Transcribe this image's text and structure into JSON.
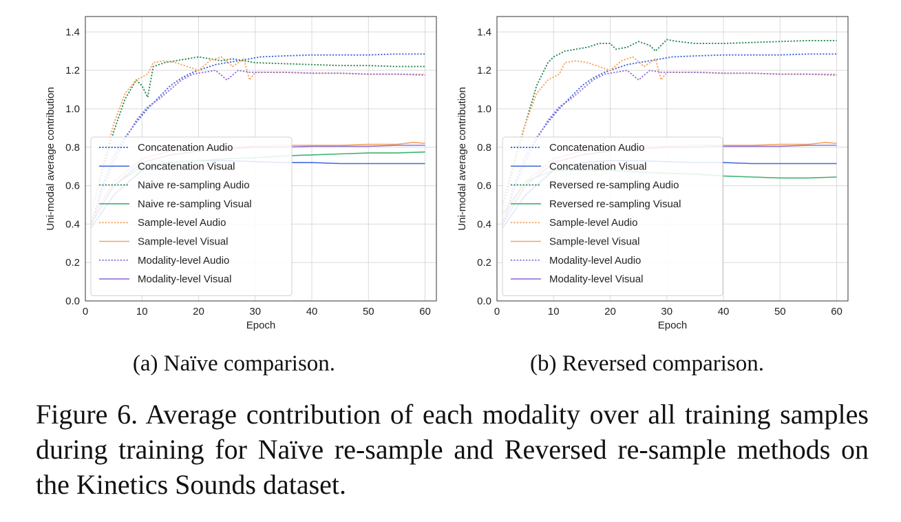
{
  "chart_data": [
    {
      "type": "line",
      "panel_id": "a",
      "xlabel": "Epoch",
      "ylabel": "Uni-modal average contribution",
      "xlim": [
        0,
        62
      ],
      "ylim": [
        0,
        1.48
      ],
      "xticks": [
        0,
        10,
        20,
        30,
        40,
        50,
        60
      ],
      "yticks": [
        0.0,
        0.2,
        0.4,
        0.6,
        0.8,
        1.0,
        1.2,
        1.4
      ],
      "ytick_labels": [
        "0.0",
        "0.2",
        "0.4",
        "0.6",
        "0.8",
        "1.0",
        "1.2",
        "1.4"
      ],
      "grid": true,
      "legend_position": "lower-left",
      "series": [
        {
          "name": "Concatenation Audio",
          "color": "#4169e1",
          "style": "dotted",
          "x": [
            1,
            3,
            5,
            7,
            9,
            11,
            13,
            15,
            17,
            19,
            21,
            23,
            25,
            27,
            29,
            31,
            35,
            40,
            45,
            50,
            55,
            60
          ],
          "y": [
            0.4,
            0.6,
            0.75,
            0.85,
            0.93,
            1.0,
            1.06,
            1.12,
            1.16,
            1.19,
            1.21,
            1.23,
            1.24,
            1.25,
            1.26,
            1.27,
            1.275,
            1.28,
            1.28,
            1.28,
            1.285,
            1.285
          ]
        },
        {
          "name": "Concatenation Visual",
          "color": "#4169e1",
          "style": "solid",
          "x": [
            1,
            5,
            10,
            15,
            20,
            25,
            30,
            35,
            40,
            45,
            50,
            55,
            60
          ],
          "y": [
            0.38,
            0.55,
            0.68,
            0.72,
            0.73,
            0.73,
            0.725,
            0.72,
            0.72,
            0.715,
            0.715,
            0.715,
            0.715
          ]
        },
        {
          "name": "Naive re-sampling Audio",
          "color": "#2e8b57",
          "style": "dotted",
          "x": [
            1,
            3,
            5,
            7,
            9,
            10,
            11,
            12,
            14,
            16,
            18,
            20,
            22,
            24,
            26,
            28,
            30,
            35,
            40,
            45,
            50,
            55,
            60
          ],
          "y": [
            0.45,
            0.68,
            0.88,
            1.05,
            1.15,
            1.12,
            1.06,
            1.22,
            1.24,
            1.25,
            1.26,
            1.27,
            1.26,
            1.25,
            1.26,
            1.25,
            1.24,
            1.235,
            1.23,
            1.225,
            1.225,
            1.22,
            1.22
          ]
        },
        {
          "name": "Naive re-sampling Visual",
          "color": "#3cb371",
          "style": "solid",
          "x": [
            1,
            5,
            10,
            15,
            20,
            25,
            30,
            35,
            40,
            45,
            50,
            55,
            60
          ],
          "y": [
            0.4,
            0.6,
            0.7,
            0.72,
            0.73,
            0.74,
            0.745,
            0.755,
            0.76,
            0.765,
            0.77,
            0.77,
            0.775
          ]
        },
        {
          "name": "Sample-level Audio",
          "color": "#f4a460",
          "style": "dotted",
          "x": [
            1,
            3,
            5,
            7,
            9,
            11,
            12,
            14,
            16,
            18,
            20,
            22,
            24,
            26,
            28,
            29,
            30,
            32,
            35,
            40,
            45,
            50,
            55,
            60
          ],
          "y": [
            0.45,
            0.7,
            0.92,
            1.08,
            1.15,
            1.18,
            1.24,
            1.25,
            1.24,
            1.22,
            1.2,
            1.25,
            1.27,
            1.22,
            1.26,
            1.15,
            1.19,
            1.19,
            1.19,
            1.185,
            1.185,
            1.18,
            1.18,
            1.18
          ]
        },
        {
          "name": "Sample-level Visual",
          "color": "#f4a460",
          "style": "solid",
          "x": [
            1,
            5,
            10,
            15,
            20,
            25,
            30,
            35,
            40,
            45,
            50,
            55,
            58,
            60
          ],
          "y": [
            0.42,
            0.62,
            0.74,
            0.78,
            0.79,
            0.8,
            0.805,
            0.81,
            0.81,
            0.81,
            0.815,
            0.815,
            0.825,
            0.82
          ]
        },
        {
          "name": "Modality-level Audio",
          "color": "#9370db",
          "style": "dotted",
          "x": [
            1,
            3,
            5,
            7,
            9,
            11,
            13,
            15,
            17,
            19,
            21,
            23,
            25,
            27,
            29,
            31,
            35,
            40,
            45,
            50,
            55,
            60
          ],
          "y": [
            0.38,
            0.58,
            0.72,
            0.84,
            0.94,
            1.01,
            1.05,
            1.1,
            1.15,
            1.18,
            1.19,
            1.2,
            1.15,
            1.2,
            1.19,
            1.19,
            1.19,
            1.185,
            1.185,
            1.18,
            1.18,
            1.175
          ]
        },
        {
          "name": "Modality-level Visual",
          "color": "#9370db",
          "style": "solid",
          "x": [
            1,
            5,
            10,
            15,
            20,
            25,
            30,
            35,
            40,
            45,
            50,
            55,
            60
          ],
          "y": [
            0.4,
            0.6,
            0.72,
            0.76,
            0.78,
            0.79,
            0.8,
            0.8,
            0.805,
            0.805,
            0.805,
            0.81,
            0.81
          ]
        }
      ]
    },
    {
      "type": "line",
      "panel_id": "b",
      "xlabel": "Epoch",
      "ylabel": "Uni-modal average contribution",
      "xlim": [
        0,
        62
      ],
      "ylim": [
        0,
        1.48
      ],
      "xticks": [
        0,
        10,
        20,
        30,
        40,
        50,
        60
      ],
      "yticks": [
        0.0,
        0.2,
        0.4,
        0.6,
        0.8,
        1.0,
        1.2,
        1.4
      ],
      "ytick_labels": [
        "0.0",
        "0.2",
        "0.4",
        "0.6",
        "0.8",
        "1.0",
        "1.2",
        "1.4"
      ],
      "grid": true,
      "legend_position": "lower-left",
      "series": [
        {
          "name": "Concatenation Audio",
          "color": "#4169e1",
          "style": "dotted",
          "x": [
            1,
            3,
            5,
            7,
            9,
            11,
            13,
            15,
            17,
            19,
            21,
            23,
            25,
            27,
            29,
            31,
            35,
            40,
            45,
            50,
            55,
            60
          ],
          "y": [
            0.4,
            0.6,
            0.75,
            0.85,
            0.93,
            1.0,
            1.06,
            1.12,
            1.16,
            1.19,
            1.21,
            1.23,
            1.24,
            1.25,
            1.26,
            1.27,
            1.275,
            1.28,
            1.28,
            1.28,
            1.285,
            1.285
          ]
        },
        {
          "name": "Concatenation Visual",
          "color": "#4169e1",
          "style": "solid",
          "x": [
            1,
            5,
            10,
            15,
            20,
            25,
            30,
            35,
            40,
            45,
            50,
            55,
            60
          ],
          "y": [
            0.38,
            0.55,
            0.68,
            0.72,
            0.73,
            0.73,
            0.725,
            0.72,
            0.72,
            0.715,
            0.715,
            0.715,
            0.715
          ]
        },
        {
          "name": "Reversed re-sampling Audio",
          "color": "#2e8b57",
          "style": "dotted",
          "x": [
            1,
            3,
            5,
            7,
            9,
            10,
            12,
            14,
            16,
            18,
            20,
            21,
            23,
            25,
            27,
            28,
            30,
            32,
            35,
            40,
            45,
            50,
            55,
            60
          ],
          "y": [
            0.5,
            0.72,
            0.92,
            1.12,
            1.24,
            1.27,
            1.3,
            1.31,
            1.32,
            1.34,
            1.34,
            1.31,
            1.32,
            1.35,
            1.33,
            1.3,
            1.36,
            1.35,
            1.34,
            1.34,
            1.345,
            1.35,
            1.355,
            1.355
          ]
        },
        {
          "name": "Reversed re-sampling Visual",
          "color": "#3cb371",
          "style": "solid",
          "x": [
            1,
            5,
            10,
            15,
            20,
            25,
            30,
            35,
            40,
            45,
            50,
            55,
            60
          ],
          "y": [
            0.45,
            0.62,
            0.68,
            0.68,
            0.68,
            0.67,
            0.665,
            0.66,
            0.65,
            0.645,
            0.64,
            0.64,
            0.645
          ]
        },
        {
          "name": "Sample-level Audio",
          "color": "#f4a460",
          "style": "dotted",
          "x": [
            1,
            3,
            5,
            7,
            9,
            11,
            12,
            14,
            16,
            18,
            20,
            22,
            24,
            26,
            28,
            29,
            30,
            32,
            35,
            40,
            45,
            50,
            55,
            60
          ],
          "y": [
            0.45,
            0.7,
            0.92,
            1.08,
            1.15,
            1.18,
            1.24,
            1.25,
            1.24,
            1.22,
            1.2,
            1.25,
            1.27,
            1.22,
            1.26,
            1.15,
            1.19,
            1.19,
            1.19,
            1.185,
            1.185,
            1.18,
            1.18,
            1.18
          ]
        },
        {
          "name": "Sample-level Visual",
          "color": "#f4a460",
          "style": "solid",
          "x": [
            1,
            5,
            10,
            15,
            20,
            25,
            30,
            35,
            40,
            45,
            50,
            55,
            58,
            60
          ],
          "y": [
            0.42,
            0.62,
            0.74,
            0.78,
            0.79,
            0.8,
            0.805,
            0.81,
            0.81,
            0.81,
            0.815,
            0.815,
            0.825,
            0.82
          ]
        },
        {
          "name": "Modality-level Audio",
          "color": "#9370db",
          "style": "dotted",
          "x": [
            1,
            3,
            5,
            7,
            9,
            11,
            13,
            15,
            17,
            19,
            21,
            23,
            25,
            27,
            29,
            31,
            35,
            40,
            45,
            50,
            55,
            60
          ],
          "y": [
            0.38,
            0.58,
            0.72,
            0.84,
            0.94,
            1.01,
            1.05,
            1.1,
            1.15,
            1.18,
            1.19,
            1.2,
            1.15,
            1.2,
            1.19,
            1.19,
            1.19,
            1.185,
            1.185,
            1.18,
            1.18,
            1.175
          ]
        },
        {
          "name": "Modality-level Visual",
          "color": "#9370db",
          "style": "solid",
          "x": [
            1,
            5,
            10,
            15,
            20,
            25,
            30,
            35,
            40,
            45,
            50,
            55,
            60
          ],
          "y": [
            0.4,
            0.6,
            0.72,
            0.76,
            0.78,
            0.79,
            0.8,
            0.8,
            0.805,
            0.805,
            0.805,
            0.81,
            0.81
          ]
        }
      ]
    }
  ],
  "subcaptions": {
    "a": "(a) Naïve comparison.",
    "b": "(b) Reversed comparison."
  },
  "figure_caption": "Figure 6.  Average contribution of each modality over all training samples during training for Naïve re-sample and Reversed re-sample methods on the Kinetics Sounds dataset."
}
